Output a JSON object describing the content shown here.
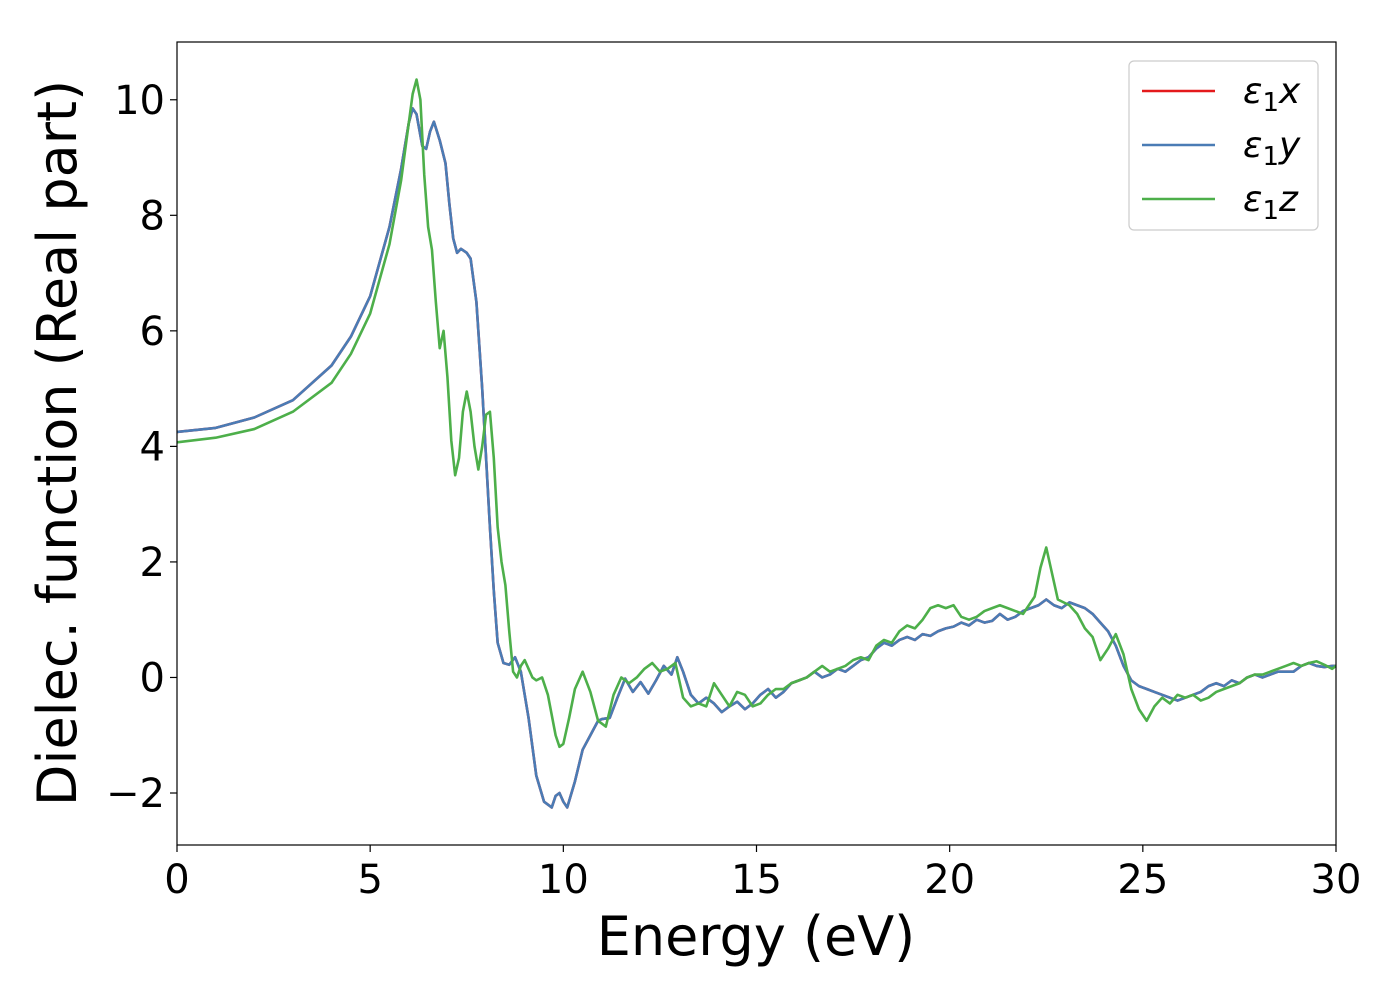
{
  "chart_data": {
    "type": "line",
    "title": "",
    "xlabel": "Energy (eV)",
    "ylabel": "Dielec. function (Real part)",
    "xlim": [
      0,
      30
    ],
    "ylim": [
      -2.9,
      11.0
    ],
    "xticks": [
      0,
      5,
      10,
      15,
      20,
      25,
      30
    ],
    "yticks": [
      -2,
      0,
      2,
      4,
      6,
      8,
      10
    ],
    "ytick_labels": [
      "−2",
      "0",
      "2",
      "4",
      "6",
      "8",
      "10"
    ],
    "grid": false,
    "legend_position": "top-right",
    "series": [
      {
        "name": "ε1x",
        "legend_base": "ε",
        "legend_sub": "1",
        "legend_suffix": "x",
        "color": "#e41a1c",
        "x": [
          0,
          1,
          2,
          3,
          4,
          4.5,
          5,
          5.5,
          5.8,
          6.0,
          6.1,
          6.2,
          6.35,
          6.45,
          6.55,
          6.65,
          6.8,
          6.95,
          7.05,
          7.15,
          7.25,
          7.35,
          7.5,
          7.6,
          7.75,
          7.9,
          8.0,
          8.1,
          8.2,
          8.3,
          8.45,
          8.6,
          8.75,
          8.9,
          9.1,
          9.3,
          9.5,
          9.7,
          9.8,
          9.9,
          10.0,
          10.1,
          10.3,
          10.5,
          10.7,
          10.9,
          11.0,
          11.2,
          11.4,
          11.6,
          11.8,
          12.0,
          12.2,
          12.4,
          12.6,
          12.8,
          12.95,
          13.1,
          13.3,
          13.5,
          13.7,
          13.9,
          14.1,
          14.3,
          14.5,
          14.7,
          14.9,
          15.1,
          15.3,
          15.5,
          15.7,
          15.9,
          16.1,
          16.3,
          16.5,
          16.7,
          16.9,
          17.1,
          17.3,
          17.5,
          17.7,
          17.9,
          18.1,
          18.3,
          18.5,
          18.7,
          18.9,
          19.1,
          19.3,
          19.5,
          19.7,
          19.9,
          20.1,
          20.3,
          20.5,
          20.7,
          20.9,
          21.1,
          21.3,
          21.5,
          21.7,
          21.9,
          22.1,
          22.3,
          22.5,
          22.7,
          22.9,
          23.1,
          23.3,
          23.5,
          23.7,
          23.9,
          24.1,
          24.3,
          24.5,
          24.7,
          24.9,
          25.1,
          25.3,
          25.5,
          25.7,
          25.9,
          26.1,
          26.3,
          26.5,
          26.7,
          26.9,
          27.1,
          27.3,
          27.5,
          27.7,
          27.9,
          28.1,
          28.3,
          28.5,
          28.7,
          28.9,
          29.1,
          29.3,
          29.5,
          29.7,
          29.9,
          30.0
        ],
        "y": [
          4.25,
          4.32,
          4.5,
          4.8,
          5.4,
          5.9,
          6.6,
          7.8,
          8.8,
          9.6,
          9.85,
          9.75,
          9.2,
          9.15,
          9.45,
          9.62,
          9.3,
          8.9,
          8.2,
          7.6,
          7.35,
          7.42,
          7.35,
          7.25,
          6.5,
          5.0,
          3.8,
          2.6,
          1.5,
          0.6,
          0.25,
          0.22,
          0.35,
          0.1,
          -0.7,
          -1.7,
          -2.15,
          -2.25,
          -2.05,
          -2.0,
          -2.15,
          -2.25,
          -1.8,
          -1.25,
          -1.0,
          -0.75,
          -0.72,
          -0.7,
          -0.35,
          -0.02,
          -0.25,
          -0.08,
          -0.28,
          -0.05,
          0.2,
          0.05,
          0.35,
          0.1,
          -0.3,
          -0.45,
          -0.35,
          -0.45,
          -0.6,
          -0.5,
          -0.42,
          -0.55,
          -0.45,
          -0.3,
          -0.2,
          -0.35,
          -0.25,
          -0.1,
          -0.05,
          0.0,
          0.1,
          0.0,
          0.05,
          0.15,
          0.1,
          0.2,
          0.3,
          0.35,
          0.5,
          0.6,
          0.55,
          0.65,
          0.7,
          0.65,
          0.75,
          0.72,
          0.8,
          0.85,
          0.88,
          0.95,
          0.9,
          1.0,
          0.95,
          0.98,
          1.1,
          1.0,
          1.05,
          1.15,
          1.2,
          1.25,
          1.35,
          1.25,
          1.2,
          1.3,
          1.25,
          1.2,
          1.1,
          0.95,
          0.8,
          0.55,
          0.2,
          -0.05,
          -0.15,
          -0.2,
          -0.25,
          -0.3,
          -0.35,
          -0.4,
          -0.35,
          -0.3,
          -0.25,
          -0.15,
          -0.1,
          -0.15,
          -0.05,
          -0.1,
          0.0,
          0.05,
          0.0,
          0.05,
          0.1,
          0.1,
          0.1,
          0.2,
          0.25,
          0.2,
          0.18,
          0.2,
          0.2
        ]
      },
      {
        "name": "ε1y",
        "legend_base": "ε",
        "legend_sub": "1",
        "legend_suffix": "y",
        "color": "#4a7cb5",
        "x": [
          0,
          1,
          2,
          3,
          4,
          4.5,
          5,
          5.5,
          5.8,
          6.0,
          6.1,
          6.2,
          6.35,
          6.45,
          6.55,
          6.65,
          6.8,
          6.95,
          7.05,
          7.15,
          7.25,
          7.35,
          7.5,
          7.6,
          7.75,
          7.9,
          8.0,
          8.1,
          8.2,
          8.3,
          8.45,
          8.6,
          8.75,
          8.9,
          9.1,
          9.3,
          9.5,
          9.7,
          9.8,
          9.9,
          10.0,
          10.1,
          10.3,
          10.5,
          10.7,
          10.9,
          11.0,
          11.2,
          11.4,
          11.6,
          11.8,
          12.0,
          12.2,
          12.4,
          12.6,
          12.8,
          12.95,
          13.1,
          13.3,
          13.5,
          13.7,
          13.9,
          14.1,
          14.3,
          14.5,
          14.7,
          14.9,
          15.1,
          15.3,
          15.5,
          15.7,
          15.9,
          16.1,
          16.3,
          16.5,
          16.7,
          16.9,
          17.1,
          17.3,
          17.5,
          17.7,
          17.9,
          18.1,
          18.3,
          18.5,
          18.7,
          18.9,
          19.1,
          19.3,
          19.5,
          19.7,
          19.9,
          20.1,
          20.3,
          20.5,
          20.7,
          20.9,
          21.1,
          21.3,
          21.5,
          21.7,
          21.9,
          22.1,
          22.3,
          22.5,
          22.7,
          22.9,
          23.1,
          23.3,
          23.5,
          23.7,
          23.9,
          24.1,
          24.3,
          24.5,
          24.7,
          24.9,
          25.1,
          25.3,
          25.5,
          25.7,
          25.9,
          26.1,
          26.3,
          26.5,
          26.7,
          26.9,
          27.1,
          27.3,
          27.5,
          27.7,
          27.9,
          28.1,
          28.3,
          28.5,
          28.7,
          28.9,
          29.1,
          29.3,
          29.5,
          29.7,
          29.9,
          30.0
        ],
        "y": [
          4.25,
          4.32,
          4.5,
          4.8,
          5.4,
          5.9,
          6.6,
          7.8,
          8.8,
          9.6,
          9.85,
          9.75,
          9.2,
          9.15,
          9.45,
          9.62,
          9.3,
          8.9,
          8.2,
          7.6,
          7.35,
          7.42,
          7.35,
          7.25,
          6.5,
          5.0,
          3.8,
          2.6,
          1.5,
          0.6,
          0.25,
          0.22,
          0.35,
          0.1,
          -0.7,
          -1.7,
          -2.15,
          -2.25,
          -2.05,
          -2.0,
          -2.15,
          -2.25,
          -1.8,
          -1.25,
          -1.0,
          -0.75,
          -0.72,
          -0.7,
          -0.35,
          -0.02,
          -0.25,
          -0.08,
          -0.28,
          -0.05,
          0.2,
          0.05,
          0.35,
          0.1,
          -0.3,
          -0.45,
          -0.35,
          -0.45,
          -0.6,
          -0.5,
          -0.42,
          -0.55,
          -0.45,
          -0.3,
          -0.2,
          -0.35,
          -0.25,
          -0.1,
          -0.05,
          0.0,
          0.1,
          0.0,
          0.05,
          0.15,
          0.1,
          0.2,
          0.3,
          0.35,
          0.5,
          0.6,
          0.55,
          0.65,
          0.7,
          0.65,
          0.75,
          0.72,
          0.8,
          0.85,
          0.88,
          0.95,
          0.9,
          1.0,
          0.95,
          0.98,
          1.1,
          1.0,
          1.05,
          1.15,
          1.2,
          1.25,
          1.35,
          1.25,
          1.2,
          1.3,
          1.25,
          1.2,
          1.1,
          0.95,
          0.8,
          0.55,
          0.2,
          -0.05,
          -0.15,
          -0.2,
          -0.25,
          -0.3,
          -0.35,
          -0.4,
          -0.35,
          -0.3,
          -0.25,
          -0.15,
          -0.1,
          -0.15,
          -0.05,
          -0.1,
          0.0,
          0.05,
          0.0,
          0.05,
          0.1,
          0.1,
          0.1,
          0.2,
          0.25,
          0.2,
          0.18,
          0.2,
          0.2
        ]
      },
      {
        "name": "ε1z",
        "legend_base": "ε",
        "legend_sub": "1",
        "legend_suffix": "z",
        "color": "#4daf4a",
        "x": [
          0,
          1,
          2,
          3,
          4,
          4.5,
          5,
          5.5,
          5.8,
          6.0,
          6.1,
          6.2,
          6.3,
          6.4,
          6.5,
          6.6,
          6.7,
          6.8,
          6.9,
          7.0,
          7.1,
          7.2,
          7.3,
          7.4,
          7.5,
          7.6,
          7.7,
          7.8,
          7.9,
          8.0,
          8.1,
          8.2,
          8.3,
          8.4,
          8.5,
          8.6,
          8.7,
          8.8,
          8.9,
          9.0,
          9.1,
          9.2,
          9.3,
          9.45,
          9.6,
          9.8,
          9.9,
          10.0,
          10.15,
          10.3,
          10.5,
          10.7,
          10.9,
          11.1,
          11.3,
          11.5,
          11.7,
          11.9,
          12.1,
          12.3,
          12.5,
          12.7,
          12.9,
          13.1,
          13.3,
          13.5,
          13.7,
          13.9,
          14.1,
          14.3,
          14.5,
          14.7,
          14.9,
          15.1,
          15.3,
          15.5,
          15.7,
          15.9,
          16.1,
          16.3,
          16.5,
          16.7,
          16.9,
          17.1,
          17.3,
          17.5,
          17.7,
          17.9,
          18.1,
          18.3,
          18.5,
          18.7,
          18.9,
          19.1,
          19.3,
          19.5,
          19.7,
          19.9,
          20.1,
          20.3,
          20.5,
          20.7,
          20.9,
          21.1,
          21.3,
          21.5,
          21.7,
          21.9,
          22.0,
          22.2,
          22.35,
          22.5,
          22.65,
          22.8,
          22.95,
          23.1,
          23.3,
          23.5,
          23.7,
          23.9,
          24.1,
          24.3,
          24.5,
          24.7,
          24.9,
          25.1,
          25.3,
          25.5,
          25.7,
          25.9,
          26.1,
          26.3,
          26.5,
          26.7,
          26.9,
          27.1,
          27.3,
          27.5,
          27.7,
          27.9,
          28.1,
          28.3,
          28.5,
          28.7,
          28.9,
          29.1,
          29.3,
          29.5,
          29.7,
          29.9,
          30.0
        ],
        "y": [
          4.07,
          4.15,
          4.3,
          4.6,
          5.1,
          5.6,
          6.3,
          7.5,
          8.6,
          9.6,
          10.1,
          10.35,
          10.0,
          8.7,
          7.8,
          7.4,
          6.5,
          5.7,
          6.0,
          5.2,
          4.1,
          3.5,
          3.8,
          4.6,
          4.95,
          4.6,
          4.0,
          3.6,
          4.0,
          4.55,
          4.6,
          3.8,
          2.6,
          2.0,
          1.6,
          0.8,
          0.1,
          0.0,
          0.2,
          0.3,
          0.15,
          0.0,
          -0.05,
          0.0,
          -0.3,
          -1.0,
          -1.2,
          -1.15,
          -0.7,
          -0.2,
          0.1,
          -0.25,
          -0.75,
          -0.85,
          -0.3,
          0.0,
          -0.1,
          0.0,
          0.15,
          0.25,
          0.1,
          0.15,
          0.25,
          -0.35,
          -0.5,
          -0.45,
          -0.5,
          -0.1,
          -0.3,
          -0.5,
          -0.25,
          -0.3,
          -0.5,
          -0.45,
          -0.3,
          -0.2,
          -0.2,
          -0.1,
          -0.05,
          0.0,
          0.1,
          0.2,
          0.1,
          0.15,
          0.2,
          0.3,
          0.35,
          0.3,
          0.55,
          0.65,
          0.6,
          0.8,
          0.9,
          0.85,
          1.0,
          1.2,
          1.25,
          1.2,
          1.25,
          1.05,
          1.0,
          1.05,
          1.15,
          1.2,
          1.25,
          1.2,
          1.15,
          1.1,
          1.2,
          1.4,
          1.9,
          2.25,
          1.8,
          1.35,
          1.3,
          1.25,
          1.1,
          0.85,
          0.7,
          0.3,
          0.5,
          0.75,
          0.4,
          -0.2,
          -0.55,
          -0.75,
          -0.5,
          -0.35,
          -0.45,
          -0.3,
          -0.35,
          -0.3,
          -0.4,
          -0.35,
          -0.25,
          -0.2,
          -0.15,
          -0.1,
          0.0,
          0.05,
          0.05,
          0.1,
          0.15,
          0.2,
          0.25,
          0.2,
          0.25,
          0.28,
          0.22,
          0.15,
          0.2
        ]
      }
    ]
  }
}
